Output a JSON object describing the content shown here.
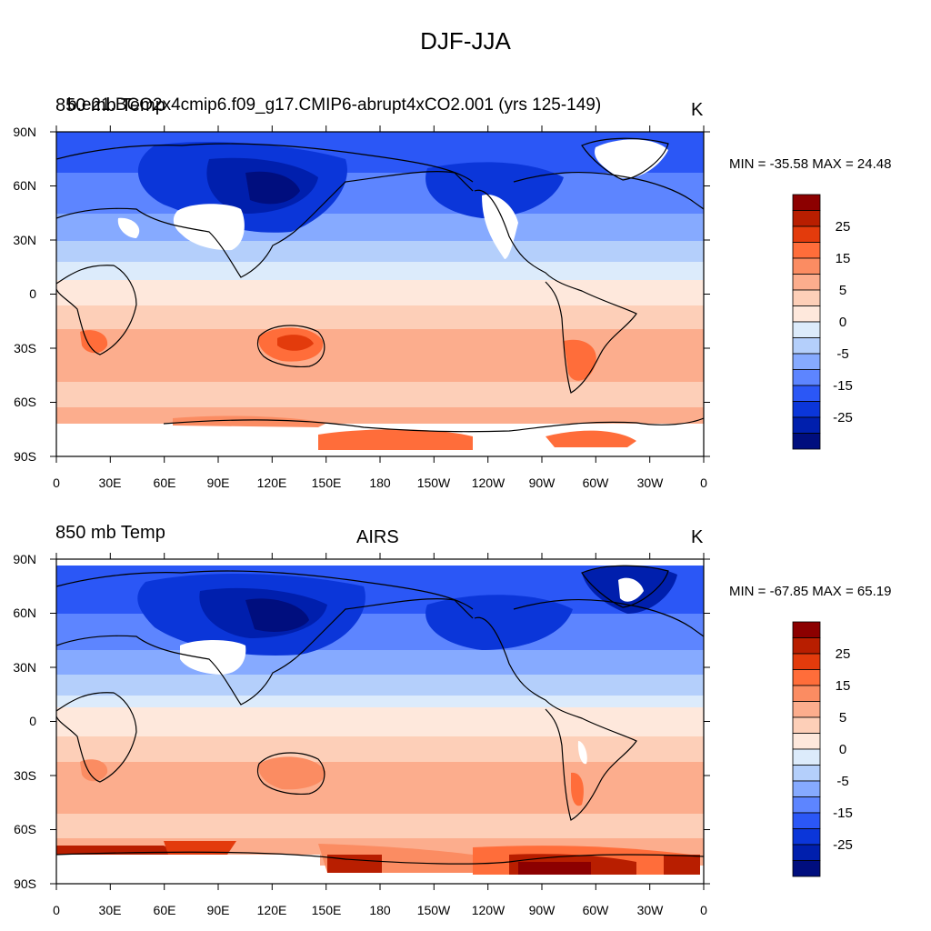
{
  "title": "DJF-JJA",
  "panels": [
    {
      "left_label": "850 mb Temp",
      "center_label": "",
      "right_label": "K",
      "case_label": "b.e21.BCO2x4cmip6.f09_g17.CMIP6-abrupt4xCO2.001 (yrs 125-149)",
      "minmax": "MIN = -35.58 MAX =  24.48"
    },
    {
      "left_label": "850 mb Temp",
      "center_label": "AIRS",
      "right_label": "K",
      "case_label": "",
      "minmax": "MIN = -67.85 MAX =  65.19"
    }
  ],
  "lat_ticks": [
    "90N",
    "60N",
    "30N",
    "0",
    "30S",
    "60S",
    "90S"
  ],
  "lon_ticks": [
    "0",
    "30E",
    "60E",
    "90E",
    "120E",
    "150E",
    "180",
    "150W",
    "120W",
    "90W",
    "60W",
    "30W",
    "0"
  ],
  "colorbar": {
    "tick_labels": [
      "25",
      "15",
      "5",
      "0",
      "-5",
      "-15",
      "-25"
    ],
    "colors": [
      "#8c0000",
      "#b81e00",
      "#e33b0c",
      "#ff6d3a",
      "#fb8c62",
      "#fcad8d",
      "#fdcfb8",
      "#fee8dc",
      "#dcebfb",
      "#b4cffb",
      "#86aaff",
      "#5d85ff",
      "#2b57f6",
      "#0b36d9",
      "#001fad",
      "#000e7e"
    ]
  },
  "colors": {
    "land_outline": "#000000",
    "missing": "#ffffff"
  }
}
